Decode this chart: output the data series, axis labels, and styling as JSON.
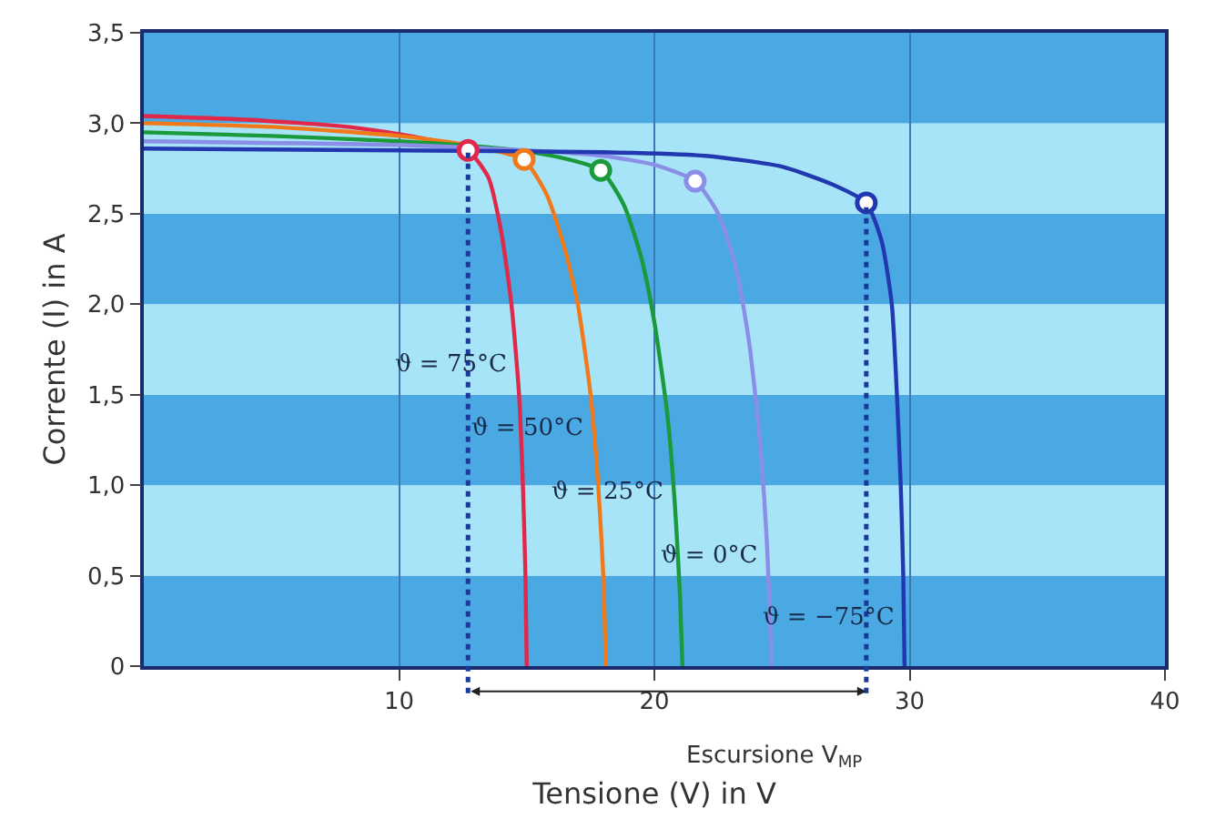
{
  "chart_data": {
    "type": "line",
    "xlabel": "Tensione (V) in V",
    "ylabel": "Corrente (I) in A",
    "xlim": [
      0,
      40
    ],
    "xticks": [
      10,
      20,
      30,
      40
    ],
    "ylim": [
      0,
      3.5
    ],
    "yticks": [
      0,
      {
        "value": 0.5,
        "label": "0,5"
      },
      {
        "value": 1.0,
        "label": "1,0"
      },
      {
        "value": 1.5,
        "label": "1,5"
      },
      {
        "value": 2.0,
        "label": "2,0"
      },
      {
        "value": 2.5,
        "label": "2,5"
      },
      {
        "value": 3.0,
        "label": "3,0"
      },
      {
        "value": 3.5,
        "label": "3,5"
      }
    ],
    "grid": "x",
    "legend": false,
    "marker": "none",
    "line_style": "solid",
    "series": [
      {
        "name": "ϑ = 75°C",
        "color": "#e0284a",
        "x": [
          0,
          4,
          8,
          10,
          11.5,
          12.7,
          13.5,
          14.0,
          14.4,
          14.7,
          14.85,
          14.95,
          15.0
        ],
        "values": [
          3.04,
          3.02,
          2.98,
          2.94,
          2.9,
          2.85,
          2.7,
          2.4,
          2.0,
          1.5,
          1.0,
          0.5,
          0
        ]
      },
      {
        "name": "ϑ = 50°C",
        "color": "#f07a1a",
        "x": [
          0,
          5,
          10,
          12.7,
          14.0,
          14.9,
          15.8,
          16.5,
          17.0,
          17.5,
          17.8,
          18.0,
          18.1
        ],
        "values": [
          3.0,
          2.98,
          2.93,
          2.88,
          2.84,
          2.8,
          2.6,
          2.3,
          2.0,
          1.5,
          1.0,
          0.5,
          0
        ]
      },
      {
        "name": "ϑ = 25°C",
        "color": "#1a9a3a",
        "x": [
          0,
          5,
          10,
          14,
          16,
          17.9,
          18.8,
          19.5,
          20.0,
          20.5,
          20.8,
          21.0,
          21.1
        ],
        "values": [
          2.95,
          2.93,
          2.9,
          2.86,
          2.82,
          2.74,
          2.55,
          2.25,
          1.9,
          1.4,
          0.9,
          0.4,
          0
        ]
      },
      {
        "name": "ϑ = 0°C",
        "color": "#8a8ee6",
        "x": [
          0,
          10,
          15,
          18,
          20,
          21.6,
          22.5,
          23.2,
          23.7,
          24.1,
          24.4,
          24.6
        ],
        "values": [
          2.9,
          2.88,
          2.85,
          2.82,
          2.77,
          2.68,
          2.5,
          2.2,
          1.8,
          1.3,
          0.7,
          0
        ]
      },
      {
        "name": "ϑ = −75°C",
        "color": "#2238b0",
        "x": [
          0,
          10,
          18,
          22,
          25,
          27,
          28.3,
          28.9,
          29.3,
          29.5,
          29.65,
          29.75,
          29.8
        ],
        "values": [
          2.86,
          2.85,
          2.84,
          2.82,
          2.76,
          2.66,
          2.56,
          2.35,
          2.0,
          1.5,
          1.0,
          0.5,
          0
        ]
      },
      {
        "type": "scatter",
        "marker": "circle",
        "x": [
          12.7,
          14.9,
          17.9,
          21.6,
          28.3
        ],
        "values": [
          2.85,
          2.8,
          2.74,
          2.68,
          2.56
        ],
        "colors": [
          "#e0284a",
          "#f07a1a",
          "#1a9a3a",
          "#8a8ee6",
          "#2238b0"
        ]
      }
    ],
    "bands": [
      {
        "axis": "y",
        "from": 0,
        "to": 0.5,
        "color": "#4aa8e2"
      },
      {
        "axis": "y",
        "from": 0.5,
        "to": 1.0,
        "color": "#a8e4f8"
      },
      {
        "axis": "y",
        "from": 1.0,
        "to": 1.5,
        "color": "#4aa8e2"
      },
      {
        "axis": "y",
        "from": 1.5,
        "to": 2.0,
        "color": "#a8e4f8"
      },
      {
        "axis": "y",
        "from": 2.0,
        "to": 2.5,
        "color": "#4aa8e2"
      },
      {
        "axis": "y",
        "from": 2.5,
        "to": 3.0,
        "color": "#a8e4f8"
      },
      {
        "axis": "y",
        "from": 3.0,
        "to": 3.5,
        "color": "#4aa8e2"
      }
    ],
    "ref_lines": [
      {
        "axis": "x",
        "value": 12.7,
        "color": "#1a3a9a",
        "line_style": "dotted"
      },
      {
        "axis": "x",
        "value": 28.3,
        "color": "#1a3a9a",
        "line_style": "dotted"
      }
    ],
    "annotations": [
      "Escursione V$_{MP}$"
    ]
  }
}
